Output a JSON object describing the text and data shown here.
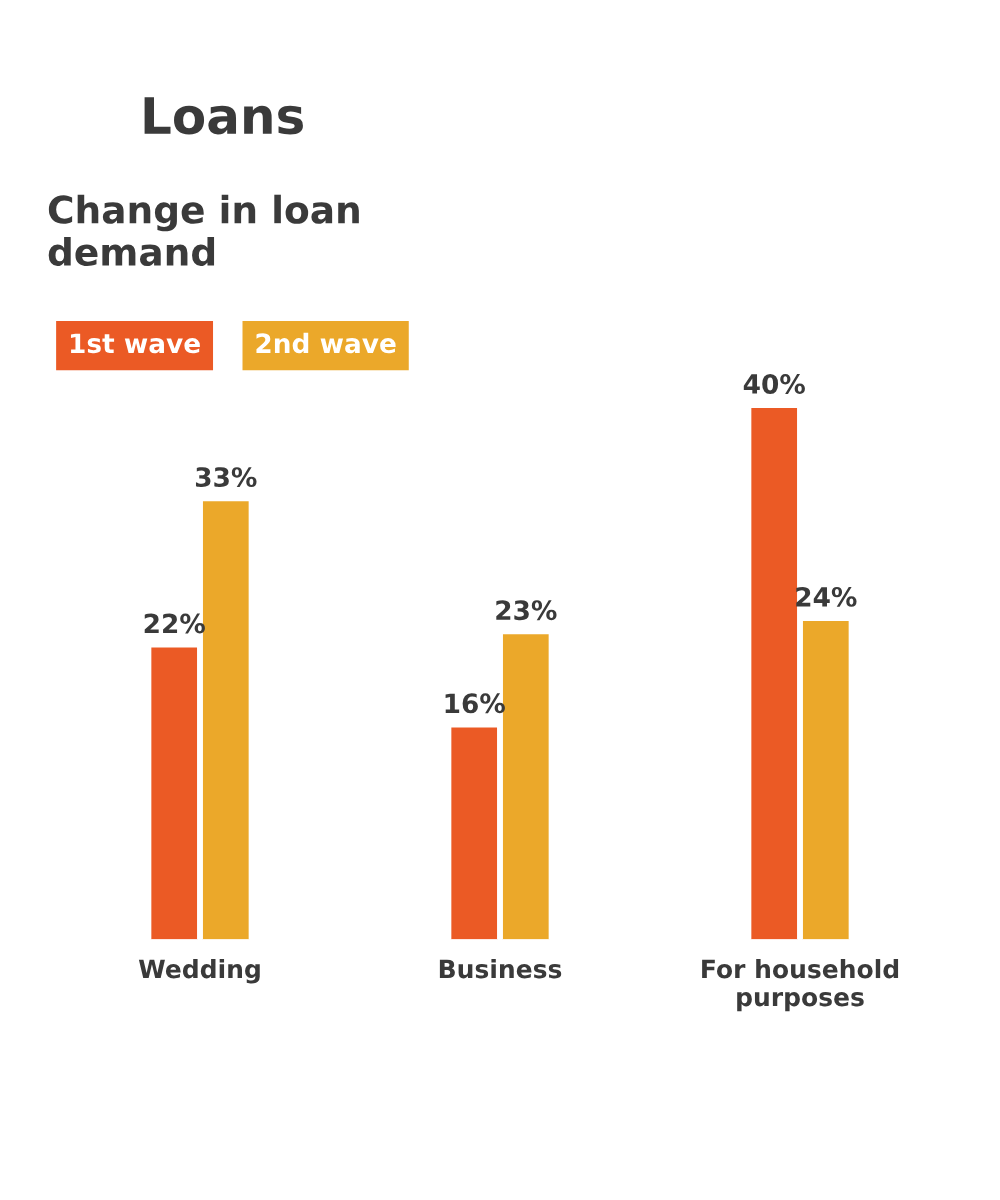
{
  "chart_data": {
    "type": "bar",
    "title": "Loans",
    "subtitle": "Change in loan demand",
    "categories": [
      "Wedding",
      "Business",
      "For household purposes"
    ],
    "series": [
      {
        "name": "1st wave",
        "color": "#eb5a25",
        "values": [
          22,
          16,
          40
        ],
        "value_labels": [
          "22%",
          "16%",
          "40%"
        ]
      },
      {
        "name": "2nd wave",
        "color": "#eba82a",
        "values": [
          33,
          23,
          24
        ],
        "value_labels": [
          "33%",
          "23%",
          "24%"
        ]
      }
    ],
    "legend": "top left",
    "grid": false
  }
}
